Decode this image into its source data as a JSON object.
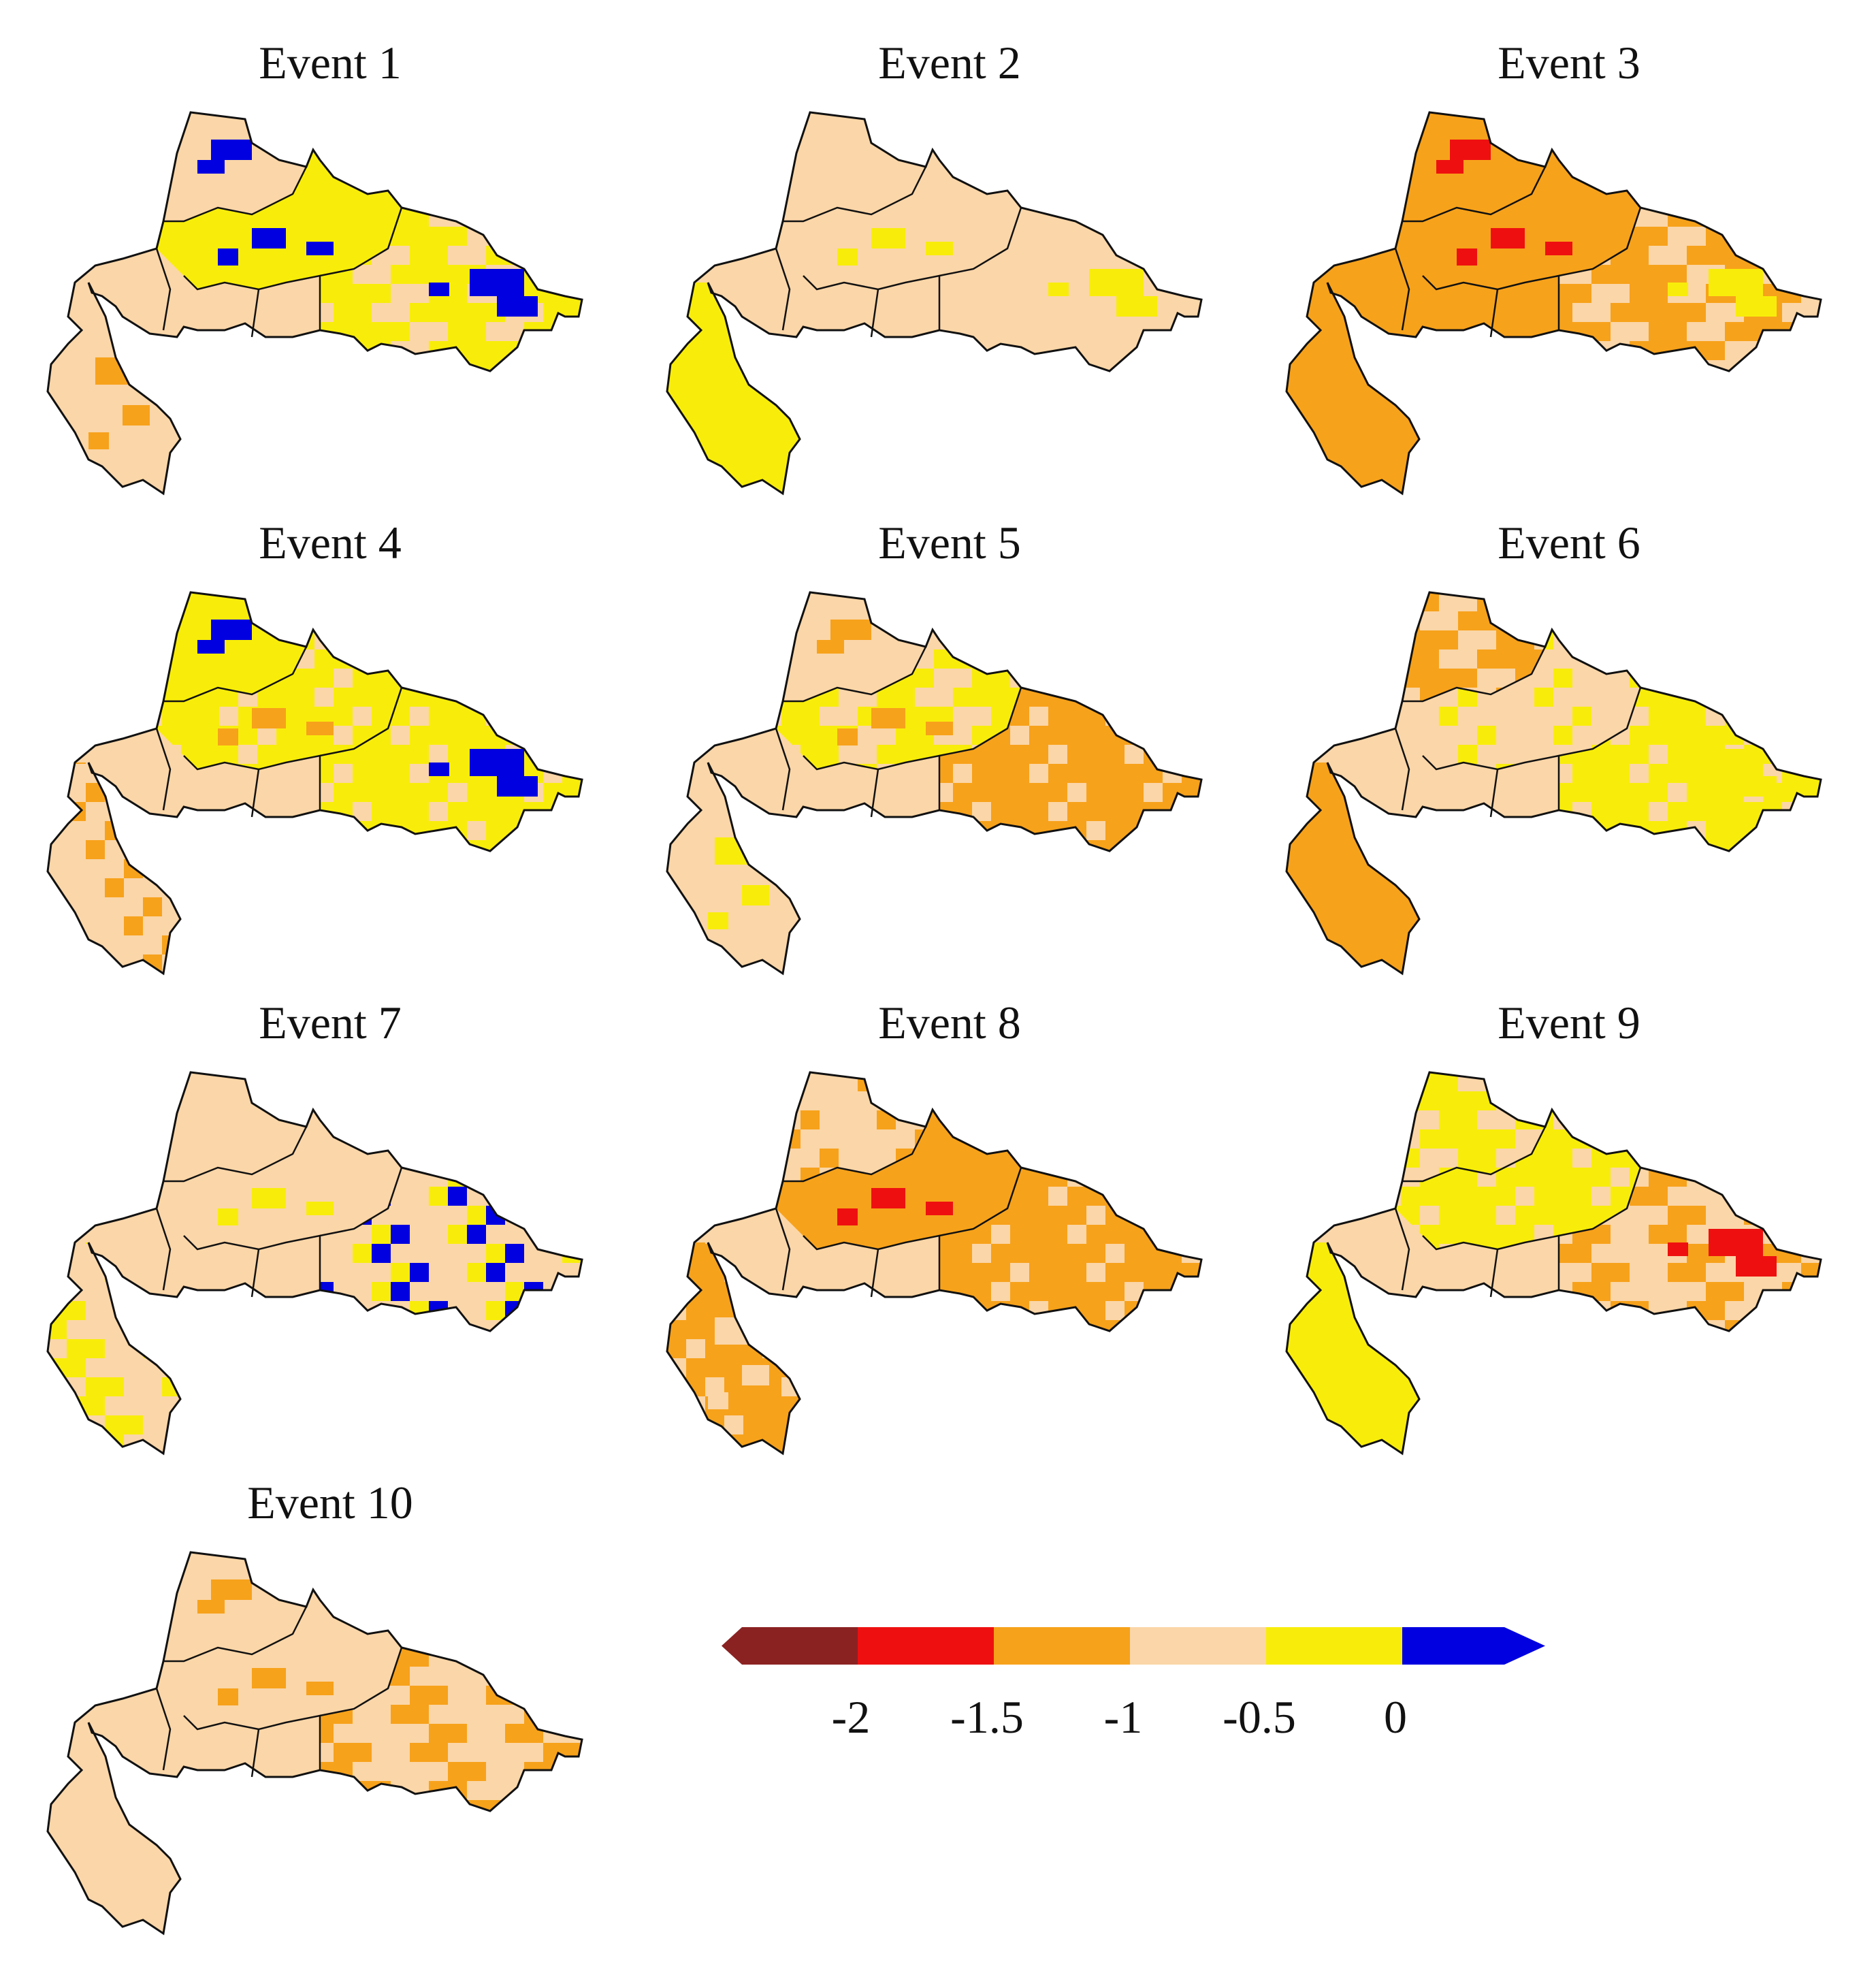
{
  "panels": [
    {
      "title": "Event 1",
      "base_color": "#fbd6a8",
      "regions": [
        [
          "#fbd6a8",
          "#fbd6a8",
          "#fbd6a8"
        ],
        [
          "#f8ed0a",
          "#f8ed0a",
          "#f8ed0a"
        ],
        [
          "#f8ed0a",
          "#fbd6a8",
          "#fbd6a8"
        ],
        [
          "#fbd6a8",
          "#fbd6a8",
          "#fbd6a8"
        ]
      ],
      "patches": [
        {
          "region": 0,
          "color": "#0000e0"
        },
        {
          "region": 1,
          "color": "#0000e0"
        },
        {
          "region": 2,
          "color": "#0000e0"
        },
        {
          "region": 3,
          "color": "#f7a21b"
        }
      ]
    },
    {
      "title": "Event 2",
      "base_color": "#fbd6a8",
      "regions": [
        [
          "#fbd6a8",
          "#fbd6a8",
          "#fbd6a8"
        ],
        [
          "#fbd6a8",
          "#fbd6a8",
          "#fbd6a8"
        ],
        [
          "#fbd6a8",
          "#fbd6a8",
          "#fbd6a8"
        ],
        [
          "#f8ed0a",
          "#f8ed0a",
          "#f8ed0a"
        ]
      ],
      "patches": [
        {
          "region": 2,
          "color": "#f8ed0a"
        },
        {
          "region": 1,
          "color": "#f8ed0a"
        }
      ]
    },
    {
      "title": "Event 3",
      "base_color": "#f7a21b",
      "regions": [
        [
          "#f7a21b",
          "#f7a21b",
          "#f7a21b"
        ],
        [
          "#f7a21b",
          "#f7a21b",
          "#f7a21b"
        ],
        [
          "#f7a21b",
          "#fbd6a8",
          "#fbd6a8"
        ],
        [
          "#f7a21b",
          "#f7a21b",
          "#f7a21b"
        ]
      ],
      "patches": [
        {
          "region": 0,
          "color": "#ee1010"
        },
        {
          "region": 1,
          "color": "#ee1010"
        },
        {
          "region": 2,
          "color": "#f8ed0a"
        }
      ]
    },
    {
      "title": "Event 4",
      "base_color": "#fbd6a8",
      "regions": [
        [
          "#f8ed0a",
          "#f8ed0a",
          "#f8ed0a"
        ],
        [
          "#f8ed0a",
          "#fbd6a8",
          "#f8ed0a"
        ],
        [
          "#f8ed0a",
          "#fbd6a8",
          "#f8ed0a"
        ],
        [
          "#fbd6a8",
          "#f7a21b",
          "#fbd6a8"
        ]
      ],
      "patches": [
        {
          "region": 0,
          "color": "#0000e0"
        },
        {
          "region": 1,
          "color": "#0000e0"
        },
        {
          "region": 2,
          "color": "#0000e0"
        },
        {
          "region": 1,
          "color": "#f7a21b"
        }
      ]
    },
    {
      "title": "Event 5",
      "base_color": "#fbd6a8",
      "regions": [
        [
          "#fbd6a8",
          "#fbd6a8",
          "#fbd6a8"
        ],
        [
          "#f8ed0a",
          "#fbd6a8",
          "#fbd6a8"
        ],
        [
          "#f7a21b",
          "#f7a21b",
          "#fbd6a8"
        ],
        [
          "#fbd6a8",
          "#fbd6a8",
          "#fbd6a8"
        ]
      ],
      "patches": [
        {
          "region": 0,
          "color": "#f7a21b"
        },
        {
          "region": 1,
          "color": "#f7a21b"
        },
        {
          "region": 3,
          "color": "#f8ed0a"
        }
      ]
    },
    {
      "title": "Event 6",
      "base_color": "#fbd6a8",
      "regions": [
        [
          "#f7a21b",
          "#fbd6a8",
          "#fbd6a8"
        ],
        [
          "#fbd6a8",
          "#fbd6a8",
          "#f8ed0a"
        ],
        [
          "#f8ed0a",
          "#f8ed0a",
          "#fbd6a8"
        ],
        [
          "#f7a21b",
          "#f7a21b",
          "#f7a21b"
        ]
      ],
      "patches": [
        {
          "region": 2,
          "color": "#f8ed0a"
        }
      ]
    },
    {
      "title": "Event 7",
      "base_color": "#fbd6a8",
      "regions": [
        [
          "#fbd6a8",
          "#fbd6a8",
          "#fbd6a8"
        ],
        [
          "#fbd6a8",
          "#fbd6a8",
          "#fbd6a8"
        ],
        [
          "#fbd6a8",
          "#f8ed0a",
          "#0000e0"
        ],
        [
          "#fbd6a8",
          "#f8ed0a",
          "#f8ed0a"
        ]
      ],
      "patches": [
        {
          "region": 1,
          "color": "#f7a21b"
        },
        {
          "region": 1,
          "color": "#f8ed0a"
        }
      ]
    },
    {
      "title": "Event 8",
      "base_color": "#fbd6a8",
      "regions": [
        [
          "#fbd6a8",
          "#f7a21b",
          "#fbd6a8"
        ],
        [
          "#f7a21b",
          "#f7a21b",
          "#f7a21b"
        ],
        [
          "#f7a21b",
          "#f7a21b",
          "#fbd6a8"
        ],
        [
          "#f7a21b",
          "#f7a21b",
          "#fbd6a8"
        ]
      ],
      "patches": [
        {
          "region": 1,
          "color": "#ee1010"
        },
        {
          "region": 3,
          "color": "#fbd6a8"
        }
      ]
    },
    {
      "title": "Event 9",
      "base_color": "#fbd6a8",
      "regions": [
        [
          "#f8ed0a",
          "#fbd6a8",
          "#fbd6a8"
        ],
        [
          "#f8ed0a",
          "#f8ed0a",
          "#fbd6a8"
        ],
        [
          "#fbd6a8",
          "#f7a21b",
          "#f7a21b"
        ],
        [
          "#f8ed0a",
          "#f8ed0a",
          "#f8ed0a"
        ]
      ],
      "patches": [
        {
          "region": 2,
          "color": "#ee1010"
        },
        {
          "region": 2,
          "color": "#ee1010"
        }
      ]
    },
    {
      "title": "Event 10",
      "base_color": "#fbd6a8",
      "regions": [
        [
          "#fbd6a8",
          "#fbd6a8",
          "#fbd6a8"
        ],
        [
          "#fbd6a8",
          "#fbd6a8",
          "#fbd6a8"
        ],
        [
          "#fbd6a8",
          "#f7a21b",
          "#f7a21b"
        ],
        [
          "#fbd6a8",
          "#fbd6a8",
          "#fbd6a8"
        ]
      ],
      "patches": [
        {
          "region": 1,
          "color": "#f7a21b"
        },
        {
          "region": 0,
          "color": "#f7a21b"
        }
      ]
    }
  ],
  "legend": {
    "bins": [
      {
        "color": "#8b2222"
      },
      {
        "color": "#ee1010"
      },
      {
        "color": "#f7a21b"
      },
      {
        "color": "#fbd6a8"
      },
      {
        "color": "#f8ed0a"
      },
      {
        "color": "#0000e0"
      }
    ],
    "tick_labels": [
      "-2",
      "-1.5",
      "-1",
      "-0.5",
      "0"
    ]
  }
}
